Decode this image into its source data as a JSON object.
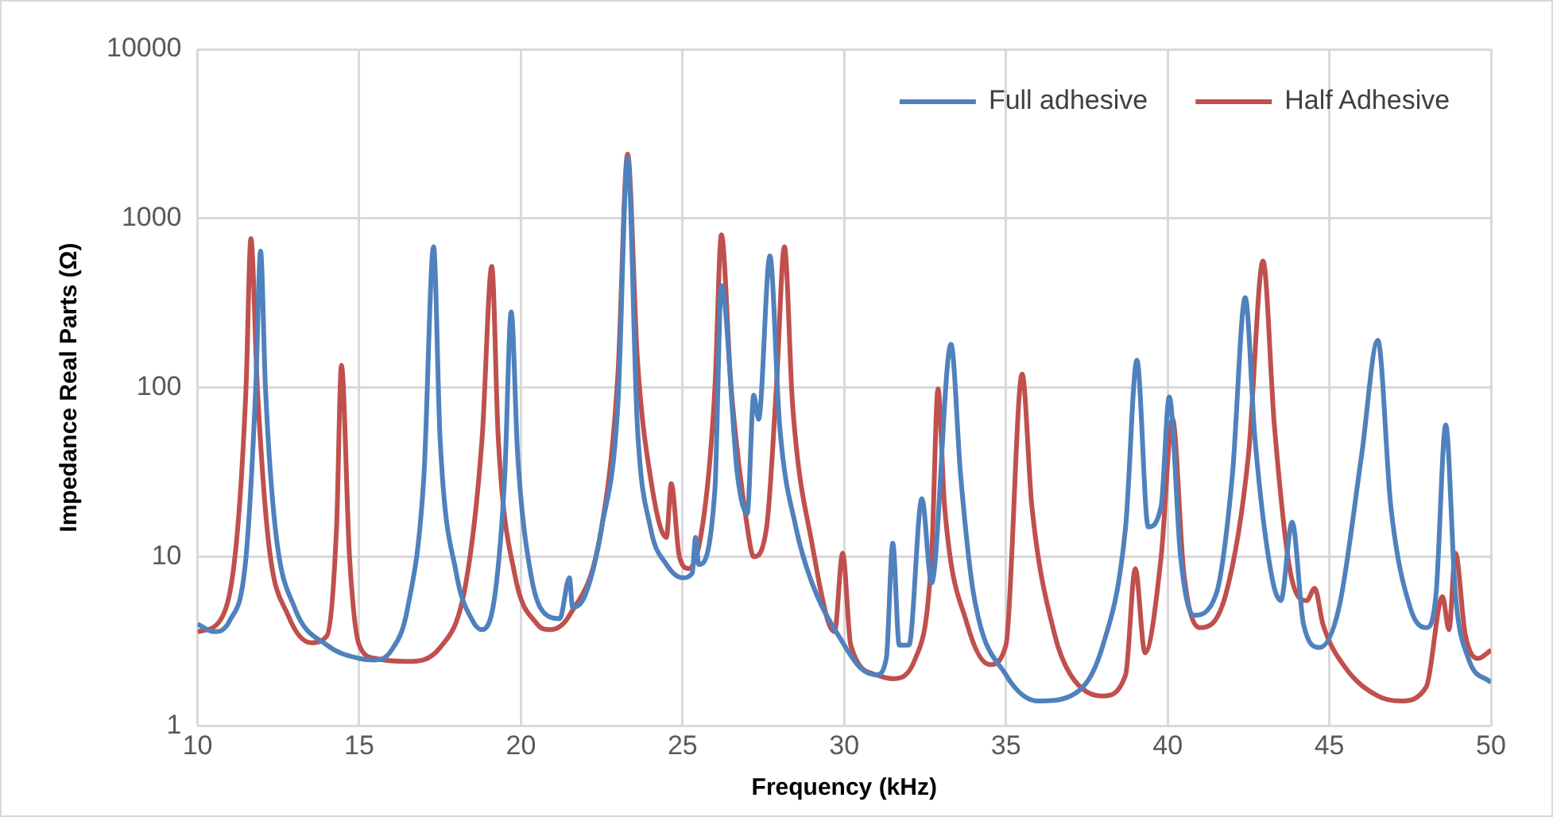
{
  "chart_data": {
    "type": "line",
    "xlabel": "Frequency (kHz)",
    "ylabel": "Impedance Real Parts (Ω)",
    "log": "y",
    "grid": true,
    "legend": "top right",
    "marker": "none",
    "line_style": "solid",
    "xlim": [
      10,
      50
    ],
    "xticks": [
      10,
      15,
      20,
      25,
      30,
      35,
      40,
      45,
      50
    ],
    "ylim": [
      1,
      10000
    ],
    "yticks": [
      1,
      10,
      100,
      1000,
      10000
    ],
    "series": [
      {
        "name": "Full adhesive",
        "color": "#4f81bd",
        "x": [
          10,
          10.5,
          11,
          11.5,
          11.8,
          11.95,
          12.1,
          12.4,
          13,
          14,
          15,
          15.5,
          16,
          16.5,
          17,
          17.3,
          17.5,
          18,
          18.5,
          18.8,
          19.2,
          19.5,
          19.7,
          19.9,
          20.3,
          20.8,
          21.2,
          21.5,
          21.6,
          22,
          22.5,
          23,
          23.3,
          23.6,
          24,
          24.5,
          25,
          25.3,
          25.4,
          25.5,
          26,
          26.2,
          26.7,
          27,
          27.2,
          27.35,
          27.7,
          28,
          28.5,
          29,
          30,
          30.5,
          31,
          31.3,
          31.5,
          31.7,
          32,
          32.4,
          32.7,
          33.3,
          33.6,
          34,
          35,
          36,
          37,
          38,
          38.7,
          39.05,
          39.4,
          39.8,
          40.05,
          40.4,
          40.8,
          41.5,
          42,
          42.4,
          42.7,
          43.2,
          43.5,
          43.85,
          44.2,
          44.7,
          45.3,
          46,
          46.5,
          46.9,
          47.5,
          48,
          48.3,
          48.6,
          48.9,
          49.3,
          50
        ],
        "values": [
          4,
          3.6,
          4.2,
          10,
          100,
          640,
          100,
          15,
          5,
          3,
          2.5,
          2.45,
          2.8,
          5,
          30,
          680,
          50,
          8,
          4.2,
          3.7,
          6,
          30,
          280,
          40,
          8,
          4.5,
          4.3,
          7.5,
          5,
          6,
          15,
          80,
          2300,
          60,
          15,
          9,
          7.5,
          8,
          13,
          9,
          25,
          400,
          30,
          18,
          90,
          65,
          600,
          60,
          15,
          7,
          3,
          2.2,
          2,
          2.5,
          12,
          3,
          3,
          22,
          7,
          180,
          30,
          6,
          2,
          1.4,
          1.5,
          3,
          15,
          145,
          15,
          20,
          88,
          10,
          4.5,
          6,
          30,
          340,
          50,
          8,
          5.5,
          16,
          4,
          2.9,
          5,
          40,
          190,
          20,
          5,
          3.8,
          6,
          60,
          6,
          2.5,
          1.8
        ]
      },
      {
        "name": "Half Adhesive",
        "color": "#c0504d",
        "x": [
          10,
          10.7,
          11.2,
          11.5,
          11.65,
          11.85,
          12.2,
          12.8,
          13.5,
          14,
          14.3,
          14.45,
          14.7,
          15,
          15.5,
          16.5,
          17.5,
          18.3,
          18.8,
          19.1,
          19.3,
          19.8,
          20.5,
          20.9,
          21.5,
          22.5,
          23,
          23.3,
          23.6,
          24,
          24.5,
          24.65,
          24.9,
          25.2,
          25.7,
          26,
          26.2,
          26.5,
          27,
          27.2,
          27.6,
          27.9,
          28.15,
          28.4,
          29,
          29.7,
          29.95,
          30.2,
          31,
          31.5,
          32.2,
          32.7,
          32.9,
          33.1,
          33.8,
          34.5,
          35,
          35.5,
          35.8,
          36.5,
          37,
          38,
          38.7,
          39,
          39.3,
          39.8,
          40.15,
          40.5,
          41,
          41.8,
          42.5,
          42.95,
          43.3,
          43.8,
          44.3,
          44.55,
          44.8,
          45.5,
          46.5,
          47.2,
          48,
          48.5,
          48.7,
          48.9,
          49.2,
          49.6,
          50
        ],
        "values": [
          3.6,
          4.2,
          12,
          100,
          760,
          100,
          12,
          4.5,
          3.1,
          3.4,
          15,
          135,
          10,
          3,
          2.5,
          2.4,
          2.9,
          7,
          50,
          520,
          50,
          8,
          4,
          3.7,
          4.5,
          15,
          120,
          2400,
          150,
          30,
          13,
          27,
          10,
          8.5,
          20,
          100,
          800,
          100,
          15,
          10,
          15,
          100,
          680,
          80,
          12,
          3.6,
          10.5,
          3,
          2,
          1.9,
          2.5,
          10,
          98,
          20,
          4,
          2.3,
          3,
          120,
          20,
          3.5,
          2,
          1.5,
          2,
          8.5,
          2.7,
          10,
          65,
          8,
          3.8,
          6,
          40,
          560,
          60,
          8,
          5.5,
          6.5,
          4,
          2.2,
          1.5,
          1.4,
          1.7,
          5.8,
          3.7,
          10.5,
          3.5,
          2.5,
          2.8
        ]
      }
    ]
  }
}
